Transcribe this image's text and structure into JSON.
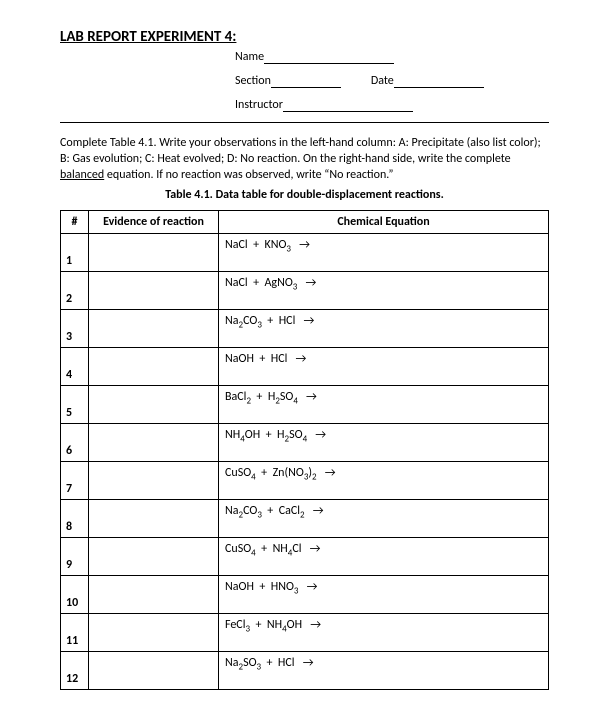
{
  "title": "LAB REPORT EXPERIMENT 4:",
  "header": {
    "name_label": "Name",
    "section_label": "Section",
    "date_label": "Date",
    "instructor_label": "Instructor",
    "name_line_w": 130,
    "section_line_w": 70,
    "date_line_w": 90,
    "instructor_line_w": 130,
    "date_gap_w": 30
  },
  "instructions": "Complete Table 4.1. Write your observations in the left-hand column: A: Precipitate (also list color); B: Gas evolution; C: Heat evolved; D: No reaction. On the right-hand side, write the complete balanced equation. If no reaction was observed, write “No reaction.”",
  "instructions_underline_word": "balanced",
  "table_caption": "Table 4.1. Data table for double-displacement reactions.",
  "columns": {
    "num": "#",
    "evidence": "Evidence of reaction",
    "equation": "Chemical Equation"
  },
  "arrow": "→",
  "rows": [
    {
      "n": "1",
      "eq_html": "NaCl &nbsp;+&nbsp; KNO<sub>3</sub> &nbsp;&nbsp;→"
    },
    {
      "n": "2",
      "eq_html": "NaCl &nbsp;+&nbsp; AgNO<sub>3</sub> &nbsp;&nbsp;→"
    },
    {
      "n": "3",
      "eq_html": "Na<sub>2</sub>CO<sub>3</sub> &nbsp;+&nbsp; HCl &nbsp;&nbsp;→"
    },
    {
      "n": "4",
      "eq_html": "NaOH &nbsp;+&nbsp; HCl &nbsp;&nbsp;→"
    },
    {
      "n": "5",
      "eq_html": "BaCl<sub>2</sub> &nbsp;+&nbsp; H<sub>2</sub>SO<sub>4</sub> &nbsp;&nbsp;→"
    },
    {
      "n": "6",
      "eq_html": "NH<sub>4</sub>OH &nbsp;+&nbsp; H<sub>2</sub>SO<sub>4</sub> &nbsp;&nbsp;→"
    },
    {
      "n": "7",
      "eq_html": "CuSO<sub>4</sub> &nbsp;+&nbsp; Zn(NO<sub>3</sub>)<sub>2</sub> &nbsp;&nbsp;→"
    },
    {
      "n": "8",
      "eq_html": "Na<sub>2</sub>CO<sub>3</sub> &nbsp;+&nbsp; CaCl<sub>2</sub> &nbsp;&nbsp;→"
    },
    {
      "n": "9",
      "eq_html": "CuSO<sub>4</sub> &nbsp;+&nbsp; NH<sub>4</sub>Cl &nbsp;&nbsp;→"
    },
    {
      "n": "10",
      "eq_html": "NaOH &nbsp;+&nbsp; HNO<sub>3</sub> &nbsp;&nbsp;→"
    },
    {
      "n": "11",
      "eq_html": "FeCl<sub>3</sub> &nbsp;+&nbsp; NH<sub>4</sub>OH &nbsp;&nbsp;→"
    },
    {
      "n": "12",
      "eq_html": "Na<sub>2</sub>SO<sub>3</sub> &nbsp;+&nbsp; HCl &nbsp;&nbsp;→"
    }
  ],
  "colors": {
    "text": "#000000",
    "background": "#ffffff",
    "border": "#000000"
  }
}
